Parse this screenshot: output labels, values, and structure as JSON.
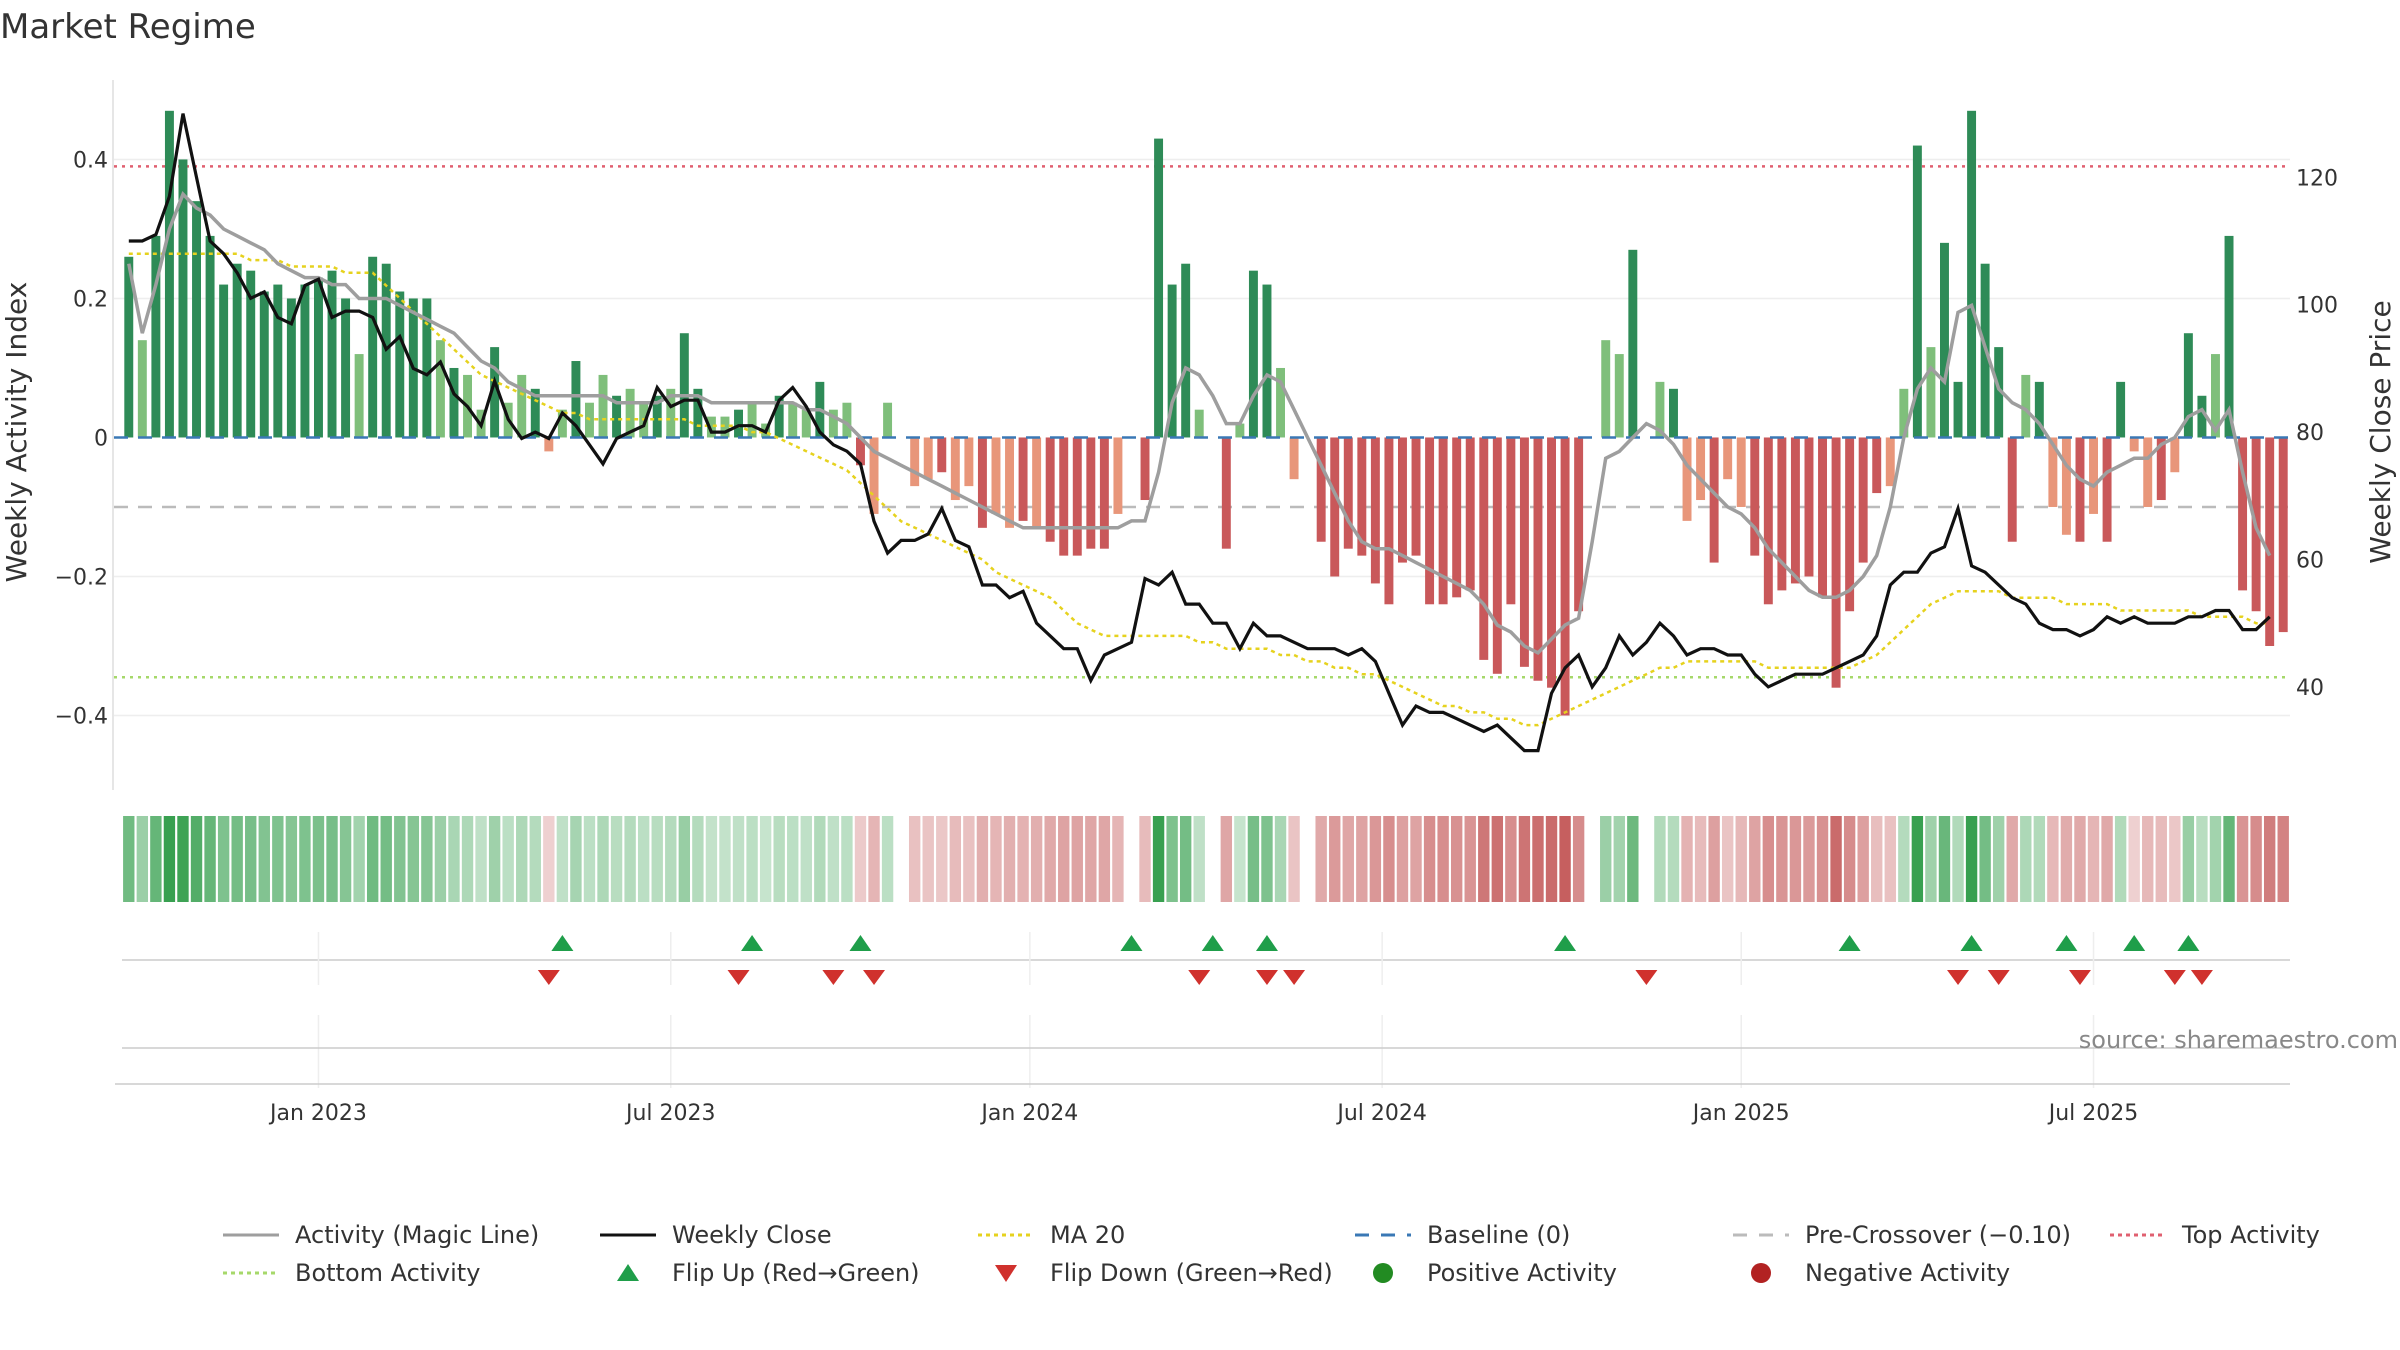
{
  "title": "Market Regime",
  "source": "source: sharemaestro.com",
  "colors": {
    "green_dark": "#2e8b57",
    "green_light": "#7fbf7b",
    "red_dark": "#c9585a",
    "red_light": "#e8967a",
    "magic_line": "#9e9e9e",
    "close": "#111111",
    "ma20": "#e6d21e",
    "baseline": "#3a78b5",
    "pre_crossover": "#bbbbbb",
    "top_activity": "#e06070",
    "bottom_activity": "#a6d86a",
    "flip_up": "#1f9e4a",
    "flip_down": "#d0312d",
    "positive": "#228b22",
    "negative": "#b22222"
  },
  "chart_data": {
    "type": "bar",
    "title": "Market Regime",
    "ylabel": "Weekly Activity Index",
    "y2label": "Weekly Close Price",
    "ylim": [
      -0.5,
      0.51
    ],
    "y2lim": [
      24.6,
      134.8
    ],
    "y_ticks": [
      {
        "v": 0.4,
        "label": "0.4"
      },
      {
        "v": 0.2,
        "label": "0.2"
      },
      {
        "v": 0,
        "label": "0"
      },
      {
        "v": -0.2,
        "label": "−0.2"
      },
      {
        "v": -0.4,
        "label": "−0.4"
      }
    ],
    "y2_ticks": [
      {
        "v": 120,
        "label": "120"
      },
      {
        "v": 100,
        "label": "100"
      },
      {
        "v": 80,
        "label": "80"
      },
      {
        "v": 60,
        "label": "60"
      },
      {
        "v": 40,
        "label": "40"
      }
    ],
    "x_ticks": [
      {
        "i": 14,
        "label": "Jan 2023"
      },
      {
        "i": 40,
        "label": "Jul 2023"
      },
      {
        "i": 66.5,
        "label": "Jan 2024"
      },
      {
        "i": 92.5,
        "label": "Jul 2024"
      },
      {
        "i": 119,
        "label": "Jan 2025"
      },
      {
        "i": 145,
        "label": "Jul 2025"
      }
    ],
    "reference_lines": {
      "baseline": 0,
      "pre_crossover": -0.1,
      "top_activity": 0.39,
      "bottom_activity": -0.345
    },
    "activity": [
      0.26,
      0.14,
      0.29,
      0.47,
      0.4,
      0.34,
      0.29,
      0.22,
      0.25,
      0.24,
      0.21,
      0.22,
      0.2,
      0.22,
      0.23,
      0.24,
      0.2,
      0.12,
      0.26,
      0.25,
      0.21,
      0.2,
      0.2,
      0.14,
      0.1,
      0.09,
      0.04,
      0.13,
      0.05,
      0.09,
      0.07,
      -0.02,
      0.04,
      0.11,
      0.05,
      0.09,
      0.06,
      0.07,
      0.05,
      0.06,
      0.07,
      0.15,
      0.07,
      0.03,
      0.03,
      0.04,
      0.05,
      0.02,
      0.06,
      0.05,
      0.04,
      0.08,
      0.04,
      0.05,
      -0.04,
      -0.11,
      0.05,
      0.0,
      -0.07,
      -0.06,
      -0.05,
      -0.09,
      -0.07,
      -0.13,
      -0.11,
      -0.13,
      -0.12,
      -0.13,
      -0.15,
      -0.17,
      -0.17,
      -0.16,
      -0.16,
      -0.11,
      0.0,
      -0.09,
      0.43,
      0.22,
      0.25,
      0.04,
      0.0,
      -0.16,
      0.02,
      0.24,
      0.22,
      0.1,
      -0.06,
      0.0,
      -0.15,
      -0.2,
      -0.16,
      -0.17,
      -0.21,
      -0.24,
      -0.18,
      -0.17,
      -0.24,
      -0.24,
      -0.23,
      -0.22,
      -0.32,
      -0.34,
      -0.24,
      -0.33,
      -0.35,
      -0.36,
      -0.4,
      -0.25,
      0.0,
      0.14,
      0.12,
      0.27,
      0.0,
      0.08,
      0.07,
      -0.12,
      -0.09,
      -0.18,
      -0.06,
      -0.1,
      -0.17,
      -0.24,
      -0.22,
      -0.21,
      -0.2,
      -0.23,
      -0.36,
      -0.25,
      -0.18,
      -0.08,
      -0.07,
      0.07,
      0.42,
      0.13,
      0.28,
      0.08,
      0.47,
      0.25,
      0.13,
      -0.15,
      0.09,
      0.08,
      -0.1,
      -0.14,
      -0.15,
      -0.11,
      -0.15,
      0.08,
      -0.02,
      -0.1,
      -0.09,
      -0.05,
      0.15,
      0.06,
      0.12,
      0.29,
      -0.22,
      -0.25,
      -0.3,
      -0.28
    ],
    "magic_line": [
      0.25,
      0.15,
      0.22,
      0.3,
      0.35,
      0.33,
      0.32,
      0.3,
      0.29,
      0.28,
      0.27,
      0.25,
      0.24,
      0.23,
      0.23,
      0.22,
      0.22,
      0.2,
      0.2,
      0.2,
      0.19,
      0.18,
      0.17,
      0.16,
      0.15,
      0.13,
      0.11,
      0.1,
      0.08,
      0.07,
      0.06,
      0.06,
      0.06,
      0.06,
      0.06,
      0.06,
      0.05,
      0.05,
      0.05,
      0.05,
      0.06,
      0.06,
      0.06,
      0.05,
      0.05,
      0.05,
      0.05,
      0.05,
      0.05,
      0.05,
      0.04,
      0.04,
      0.03,
      0.02,
      0.0,
      -0.02,
      -0.03,
      -0.04,
      -0.05,
      -0.06,
      -0.07,
      -0.08,
      -0.09,
      -0.1,
      -0.11,
      -0.12,
      -0.13,
      -0.13,
      -0.13,
      -0.13,
      -0.13,
      -0.13,
      -0.13,
      -0.13,
      -0.12,
      -0.12,
      -0.05,
      0.05,
      0.1,
      0.09,
      0.06,
      0.02,
      0.02,
      0.06,
      0.09,
      0.08,
      0.04,
      0.0,
      -0.04,
      -0.08,
      -0.12,
      -0.15,
      -0.16,
      -0.16,
      -0.17,
      -0.18,
      -0.19,
      -0.2,
      -0.21,
      -0.22,
      -0.24,
      -0.27,
      -0.28,
      -0.3,
      -0.31,
      -0.29,
      -0.27,
      -0.26,
      -0.15,
      -0.03,
      -0.02,
      0.0,
      0.02,
      0.01,
      -0.01,
      -0.04,
      -0.06,
      -0.08,
      -0.1,
      -0.11,
      -0.13,
      -0.16,
      -0.18,
      -0.2,
      -0.22,
      -0.23,
      -0.23,
      -0.22,
      -0.2,
      -0.17,
      -0.1,
      0.0,
      0.07,
      0.1,
      0.08,
      0.18,
      0.19,
      0.13,
      0.07,
      0.05,
      0.04,
      0.02,
      -0.01,
      -0.04,
      -0.06,
      -0.07,
      -0.05,
      -0.04,
      -0.03,
      -0.03,
      -0.01,
      0.0,
      0.03,
      0.04,
      0.01,
      0.04,
      -0.05,
      -0.13,
      -0.17
    ],
    "weekly_close": [
      110,
      110,
      111,
      117,
      130,
      120,
      110,
      108,
      105,
      101,
      102,
      98,
      97,
      103,
      104,
      98,
      99,
      99,
      98,
      93,
      95,
      90,
      89,
      91,
      86,
      84,
      81,
      88,
      82,
      79,
      80,
      79,
      83,
      81,
      78,
      75,
      79,
      80,
      81,
      87,
      84,
      85,
      85,
      80,
      80,
      81,
      81,
      80,
      85,
      87,
      84,
      80,
      78,
      77,
      75,
      66,
      61,
      63,
      63,
      64,
      68,
      63,
      62,
      56,
      56,
      54,
      55,
      50,
      48,
      46,
      46,
      41,
      45,
      46,
      47,
      57,
      56,
      58,
      53,
      53,
      50,
      50,
      46,
      50,
      48,
      48,
      47,
      46,
      46,
      46,
      45,
      46,
      44,
      39,
      34,
      37,
      36,
      36,
      35,
      34,
      33,
      34,
      32,
      30,
      30,
      39,
      43,
      45,
      40,
      43,
      48,
      45,
      47,
      50,
      48,
      45,
      46,
      46,
      45,
      45,
      42,
      40,
      41,
      42,
      42,
      42,
      43,
      44,
      45,
      48,
      56,
      58,
      58,
      61,
      62,
      68,
      59,
      58,
      56,
      54,
      53,
      50,
      49,
      49,
      48,
      49,
      51,
      50,
      51,
      50,
      50,
      50,
      51,
      51,
      52,
      52,
      49,
      49,
      51
    ],
    "ma20": [
      108,
      108,
      108,
      108,
      108,
      108,
      108,
      108,
      108,
      107,
      107,
      107,
      106,
      106,
      106,
      106,
      105,
      105,
      105,
      103,
      101,
      99,
      97,
      95,
      93,
      91,
      89,
      88,
      87,
      86,
      85,
      84,
      83,
      83,
      82,
      82,
      82,
      82,
      82,
      82,
      82,
      82,
      81,
      81,
      81,
      81,
      80,
      80,
      79,
      78,
      77,
      76,
      75,
      74,
      72,
      70,
      68,
      66,
      65,
      64,
      63,
      62,
      61,
      60,
      58,
      57,
      56,
      55,
      54,
      52,
      50,
      49,
      48,
      48,
      48,
      48,
      48,
      48,
      48,
      47,
      47,
      46,
      46,
      46,
      46,
      45,
      45,
      44,
      44,
      43,
      43,
      42,
      42,
      41,
      40,
      39,
      38,
      37,
      37,
      36,
      36,
      35,
      35,
      34,
      34,
      35,
      36,
      37,
      38,
      39,
      40,
      41,
      42,
      43,
      43,
      44,
      44,
      44,
      44,
      44,
      44,
      43,
      43,
      43,
      43,
      43,
      43,
      43,
      44,
      45,
      47,
      49,
      51,
      53,
      54,
      55,
      55,
      55,
      55,
      54,
      54,
      54,
      54,
      53,
      53,
      53,
      53,
      52,
      52,
      52,
      52,
      52,
      52,
      51,
      51,
      51,
      51,
      50,
      50
    ],
    "flip_up_idx": [
      32,
      46,
      54,
      74,
      80,
      84,
      106,
      127,
      136,
      143,
      148,
      152
    ],
    "flip_down_idx": [
      31,
      45,
      52,
      55,
      79,
      84,
      86,
      112,
      135,
      138,
      144,
      151,
      153
    ],
    "legend": [
      {
        "label": "Activity (Magic Line)",
        "kind": "line",
        "color": "#9e9e9e"
      },
      {
        "label": "Weekly Close",
        "kind": "line",
        "color": "#111111"
      },
      {
        "label": "MA 20",
        "kind": "dotted",
        "color": "#e6d21e"
      },
      {
        "label": "Baseline (0)",
        "kind": "dashed",
        "color": "#3a78b5"
      },
      {
        "label": "Pre-Crossover (−0.10)",
        "kind": "dashed",
        "color": "#bbbbbb"
      },
      {
        "label": "Top Activity",
        "kind": "dotted",
        "color": "#e06070"
      },
      {
        "label": "Bottom Activity",
        "kind": "dotted",
        "color": "#a6d86a"
      },
      {
        "label": "Flip Up (Red→Green)",
        "kind": "tri-up",
        "color": "#1f9e4a"
      },
      {
        "label": "Flip Down (Green→Red)",
        "kind": "tri-down",
        "color": "#d0312d"
      },
      {
        "label": "Positive Activity",
        "kind": "dot",
        "color": "#228b22"
      },
      {
        "label": "Negative Activity",
        "kind": "dot",
        "color": "#b22222"
      }
    ]
  }
}
